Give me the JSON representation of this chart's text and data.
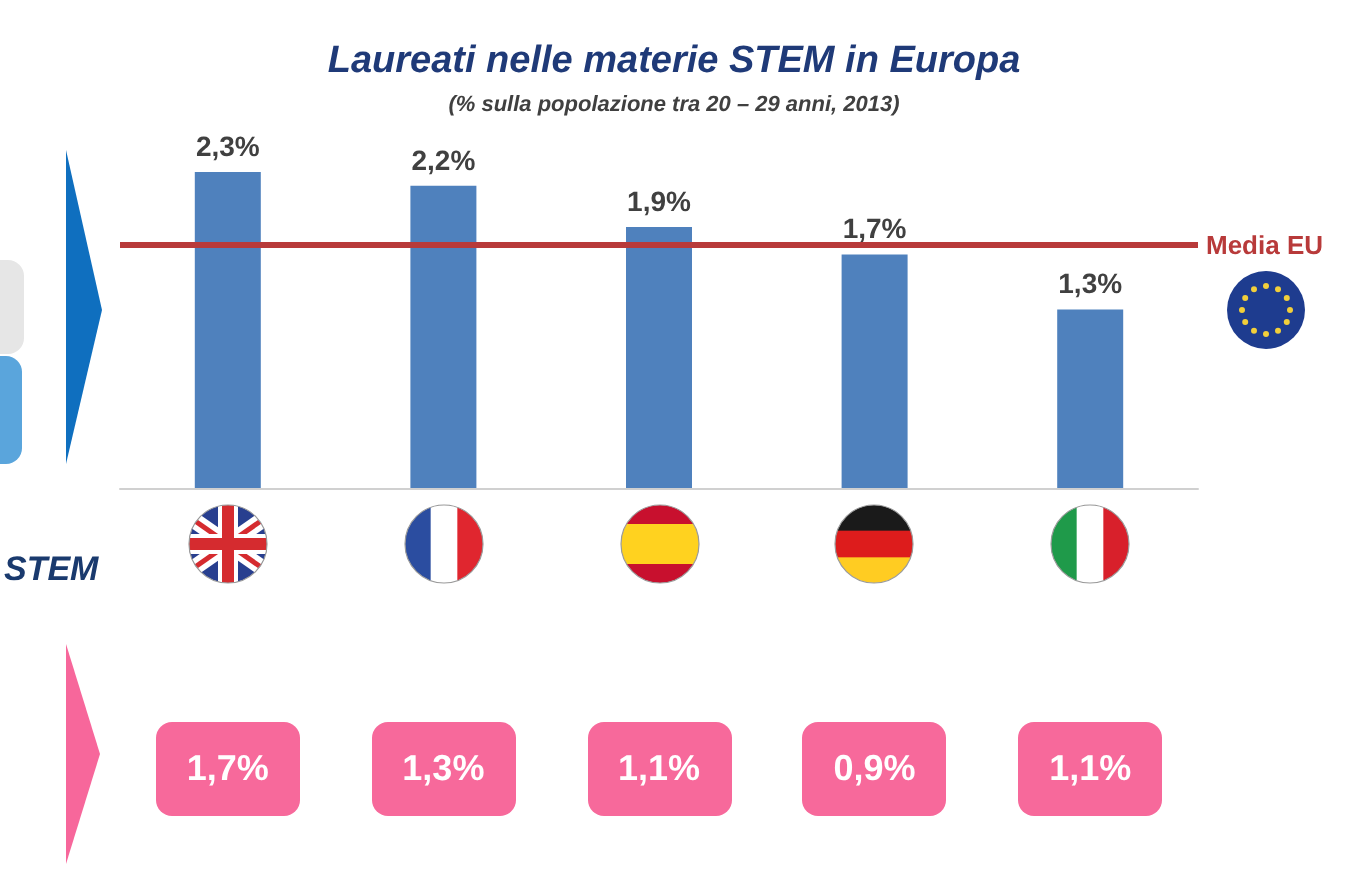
{
  "chart_data": {
    "type": "bar",
    "title": "Laureati nelle materie STEM in Europa",
    "subtitle": "(% sulla popolazione tra 20 – 29 anni, 2013)",
    "categories": [
      null,
      null,
      null,
      null,
      null
    ],
    "values": [
      2.3,
      2.2,
      1.9,
      1.7,
      1.3
    ],
    "color": "#4f81bd",
    "value_labels": [
      "2,3%",
      "2,2%",
      "1,9%",
      "1,7%",
      "1,3%"
    ],
    "ref_lines": [
      {
        "axis": "y",
        "value": 1.77,
        "label": "Media EU",
        "color": "#b83a3a"
      }
    ],
    "annotations": [
      "STEM",
      "1,7%",
      "1,3%",
      "1,1%",
      "0,9%",
      "1,1%"
    ],
    "tick_labels": false
  }
}
